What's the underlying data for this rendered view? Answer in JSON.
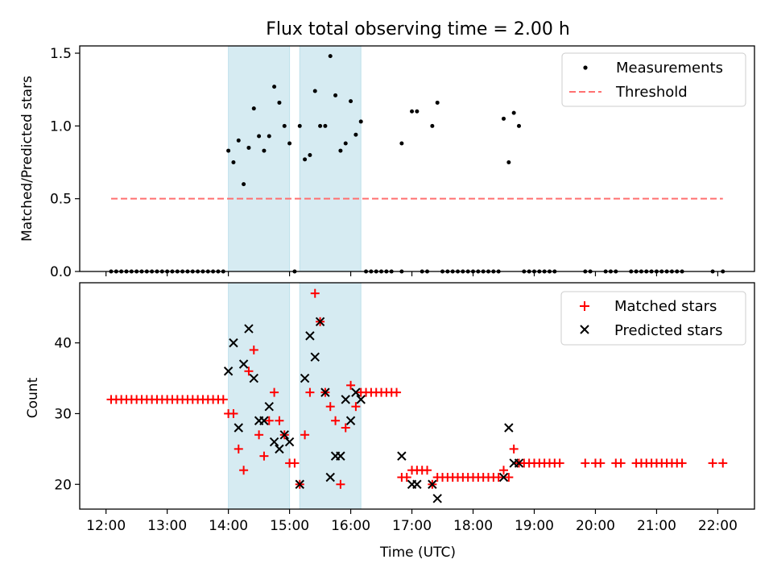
{
  "figure_title": "Flux total observing time = 2.00 h",
  "colors": {
    "measurement": "#000000",
    "threshold": "#ff7070",
    "matched": "#ff0000",
    "predicted": "#000000",
    "span_fill": "#add8e6"
  },
  "chart_data": [
    {
      "type": "scatter",
      "position": "top",
      "title": "Flux total observing time = 2.00 h",
      "xlabel": "",
      "ylabel": "Matched/Predicted stars",
      "xlim_hours": [
        11.57,
        22.6
      ],
      "ylim": [
        0,
        1.55
      ],
      "yticks": [
        0.0,
        0.5,
        1.0,
        1.5
      ],
      "ytick_labels": [
        "0.0",
        "0.5",
        "1.0",
        "1.5"
      ],
      "shaded_spans": [
        {
          "start": "14:00",
          "end": "15:00"
        },
        {
          "start": "15:10",
          "end": "16:10"
        }
      ],
      "legend": {
        "placement": "top-right",
        "entries": [
          "Measurements",
          "Threshold"
        ]
      },
      "threshold": {
        "name": "Threshold",
        "value": 0.5,
        "x_start": "12:05",
        "x_end": "22:05"
      },
      "series": [
        {
          "name": "Measurements",
          "marker": "dot",
          "points": [
            [
              "12:05",
              0
            ],
            [
              "12:10",
              0
            ],
            [
              "12:15",
              0
            ],
            [
              "12:20",
              0
            ],
            [
              "12:25",
              0
            ],
            [
              "12:30",
              0
            ],
            [
              "12:35",
              0
            ],
            [
              "12:40",
              0
            ],
            [
              "12:45",
              0
            ],
            [
              "12:50",
              0
            ],
            [
              "12:55",
              0
            ],
            [
              "13:00",
              0
            ],
            [
              "13:05",
              0
            ],
            [
              "13:10",
              0
            ],
            [
              "13:15",
              0
            ],
            [
              "13:20",
              0
            ],
            [
              "13:25",
              0
            ],
            [
              "13:30",
              0
            ],
            [
              "13:35",
              0
            ],
            [
              "13:40",
              0
            ],
            [
              "13:45",
              0
            ],
            [
              "13:50",
              0
            ],
            [
              "13:55",
              0
            ],
            [
              "14:00",
              0.83
            ],
            [
              "14:05",
              0.75
            ],
            [
              "14:10",
              0.9
            ],
            [
              "14:15",
              0.6
            ],
            [
              "14:20",
              0.85
            ],
            [
              "14:25",
              1.12
            ],
            [
              "14:30",
              0.93
            ],
            [
              "14:35",
              0.83
            ],
            [
              "14:40",
              0.93
            ],
            [
              "14:45",
              1.27
            ],
            [
              "14:50",
              1.16
            ],
            [
              "14:55",
              1.0
            ],
            [
              "15:00",
              0.88
            ],
            [
              "15:05",
              0
            ],
            [
              "15:10",
              1.0
            ],
            [
              "15:15",
              0.77
            ],
            [
              "15:20",
              0.8
            ],
            [
              "15:25",
              1.24
            ],
            [
              "15:30",
              1.0
            ],
            [
              "15:35",
              1.0
            ],
            [
              "15:40",
              1.48
            ],
            [
              "15:45",
              1.21
            ],
            [
              "15:50",
              0.83
            ],
            [
              "15:55",
              0.88
            ],
            [
              "16:00",
              1.17
            ],
            [
              "16:05",
              0.94
            ],
            [
              "16:10",
              1.03
            ],
            [
              "16:15",
              0
            ],
            [
              "16:20",
              0
            ],
            [
              "16:25",
              0
            ],
            [
              "16:30",
              0
            ],
            [
              "16:35",
              0
            ],
            [
              "16:40",
              0
            ],
            [
              "16:50",
              0
            ],
            [
              "16:50",
              0.88
            ],
            [
              "17:00",
              1.1
            ],
            [
              "17:05",
              1.1
            ],
            [
              "17:10",
              0
            ],
            [
              "17:15",
              0
            ],
            [
              "17:20",
              1.0
            ],
            [
              "17:25",
              1.16
            ],
            [
              "17:30",
              0
            ],
            [
              "17:35",
              0
            ],
            [
              "17:40",
              0
            ],
            [
              "17:45",
              0
            ],
            [
              "17:50",
              0
            ],
            [
              "17:55",
              0
            ],
            [
              "18:00",
              0
            ],
            [
              "18:05",
              0
            ],
            [
              "18:10",
              0
            ],
            [
              "18:15",
              0
            ],
            [
              "18:20",
              0
            ],
            [
              "18:25",
              0
            ],
            [
              "18:30",
              1.05
            ],
            [
              "18:35",
              0.75
            ],
            [
              "18:40",
              1.09
            ],
            [
              "18:45",
              1.0
            ],
            [
              "18:50",
              0
            ],
            [
              "18:55",
              0
            ],
            [
              "19:00",
              0
            ],
            [
              "19:05",
              0
            ],
            [
              "19:10",
              0
            ],
            [
              "19:15",
              0
            ],
            [
              "19:20",
              0
            ],
            [
              "19:50",
              0
            ],
            [
              "19:55",
              0
            ],
            [
              "20:10",
              0
            ],
            [
              "20:15",
              0
            ],
            [
              "20:20",
              0
            ],
            [
              "20:35",
              0
            ],
            [
              "20:40",
              0
            ],
            [
              "20:45",
              0
            ],
            [
              "20:50",
              0
            ],
            [
              "20:55",
              0
            ],
            [
              "21:00",
              0
            ],
            [
              "21:05",
              0
            ],
            [
              "21:10",
              0
            ],
            [
              "21:15",
              0
            ],
            [
              "21:20",
              0
            ],
            [
              "21:25",
              0
            ],
            [
              "21:55",
              0
            ],
            [
              "22:05",
              0
            ]
          ]
        }
      ]
    },
    {
      "type": "scatter",
      "position": "bottom",
      "xlabel": "Time (UTC)",
      "ylabel": "Count",
      "xlim_hours": [
        11.57,
        22.6
      ],
      "ylim": [
        16.5,
        48.5
      ],
      "yticks": [
        20,
        30,
        40
      ],
      "ytick_labels": [
        "20",
        "30",
        "40"
      ],
      "xticks": [
        "12:00",
        "13:00",
        "14:00",
        "15:00",
        "16:00",
        "17:00",
        "18:00",
        "19:00",
        "20:00",
        "21:00",
        "22:00"
      ],
      "shaded_spans": [
        {
          "start": "14:00",
          "end": "15:00"
        },
        {
          "start": "15:10",
          "end": "16:10"
        }
      ],
      "legend": {
        "placement": "top-right",
        "entries": [
          "Matched stars",
          "Predicted stars"
        ]
      },
      "series": [
        {
          "name": "Matched stars",
          "marker": "plus",
          "points": [
            [
              "12:05",
              32
            ],
            [
              "12:10",
              32
            ],
            [
              "12:15",
              32
            ],
            [
              "12:20",
              32
            ],
            [
              "12:25",
              32
            ],
            [
              "12:30",
              32
            ],
            [
              "12:35",
              32
            ],
            [
              "12:40",
              32
            ],
            [
              "12:45",
              32
            ],
            [
              "12:50",
              32
            ],
            [
              "12:55",
              32
            ],
            [
              "13:00",
              32
            ],
            [
              "13:05",
              32
            ],
            [
              "13:10",
              32
            ],
            [
              "13:15",
              32
            ],
            [
              "13:20",
              32
            ],
            [
              "13:25",
              32
            ],
            [
              "13:30",
              32
            ],
            [
              "13:35",
              32
            ],
            [
              "13:40",
              32
            ],
            [
              "13:45",
              32
            ],
            [
              "13:50",
              32
            ],
            [
              "13:55",
              32
            ],
            [
              "14:00",
              30
            ],
            [
              "14:05",
              30
            ],
            [
              "14:10",
              25
            ],
            [
              "14:15",
              22
            ],
            [
              "14:20",
              36
            ],
            [
              "14:25",
              39
            ],
            [
              "14:30",
              27
            ],
            [
              "14:35",
              24
            ],
            [
              "14:40",
              29
            ],
            [
              "14:45",
              33
            ],
            [
              "14:50",
              29
            ],
            [
              "14:55",
              27
            ],
            [
              "15:00",
              23
            ],
            [
              "15:05",
              23
            ],
            [
              "15:10",
              20
            ],
            [
              "15:15",
              27
            ],
            [
              "15:20",
              33
            ],
            [
              "15:25",
              47
            ],
            [
              "15:30",
              43
            ],
            [
              "15:35",
              33
            ],
            [
              "15:40",
              31
            ],
            [
              "15:45",
              29
            ],
            [
              "15:50",
              20
            ],
            [
              "15:55",
              28
            ],
            [
              "16:00",
              34
            ],
            [
              "16:05",
              31
            ],
            [
              "16:10",
              33
            ],
            [
              "16:15",
              33
            ],
            [
              "16:20",
              33
            ],
            [
              "16:25",
              33
            ],
            [
              "16:30",
              33
            ],
            [
              "16:35",
              33
            ],
            [
              "16:40",
              33
            ],
            [
              "16:45",
              33
            ],
            [
              "16:50",
              21
            ],
            [
              "16:55",
              21
            ],
            [
              "17:00",
              22
            ],
            [
              "17:05",
              22
            ],
            [
              "17:10",
              22
            ],
            [
              "17:15",
              22
            ],
            [
              "17:20",
              20
            ],
            [
              "17:25",
              21
            ],
            [
              "17:30",
              21
            ],
            [
              "17:35",
              21
            ],
            [
              "17:40",
              21
            ],
            [
              "17:45",
              21
            ],
            [
              "17:50",
              21
            ],
            [
              "17:55",
              21
            ],
            [
              "18:00",
              21
            ],
            [
              "18:05",
              21
            ],
            [
              "18:10",
              21
            ],
            [
              "18:15",
              21
            ],
            [
              "18:20",
              21
            ],
            [
              "18:25",
              21
            ],
            [
              "18:30",
              22
            ],
            [
              "18:35",
              21
            ],
            [
              "18:40",
              25
            ],
            [
              "18:45",
              23
            ],
            [
              "18:50",
              23
            ],
            [
              "18:55",
              23
            ],
            [
              "19:00",
              23
            ],
            [
              "19:05",
              23
            ],
            [
              "19:10",
              23
            ],
            [
              "19:15",
              23
            ],
            [
              "19:20",
              23
            ],
            [
              "19:25",
              23
            ],
            [
              "19:50",
              23
            ],
            [
              "20:00",
              23
            ],
            [
              "20:05",
              23
            ],
            [
              "20:20",
              23
            ],
            [
              "20:25",
              23
            ],
            [
              "20:40",
              23
            ],
            [
              "20:45",
              23
            ],
            [
              "20:50",
              23
            ],
            [
              "20:55",
              23
            ],
            [
              "21:00",
              23
            ],
            [
              "21:05",
              23
            ],
            [
              "21:10",
              23
            ],
            [
              "21:15",
              23
            ],
            [
              "21:20",
              23
            ],
            [
              "21:25",
              23
            ],
            [
              "21:55",
              23
            ],
            [
              "22:05",
              23
            ]
          ]
        },
        {
          "name": "Predicted stars",
          "marker": "x",
          "points": [
            [
              "14:00",
              36
            ],
            [
              "14:05",
              40
            ],
            [
              "14:10",
              28
            ],
            [
              "14:15",
              37
            ],
            [
              "14:20",
              42
            ],
            [
              "14:25",
              35
            ],
            [
              "14:30",
              29
            ],
            [
              "14:35",
              29
            ],
            [
              "14:40",
              31
            ],
            [
              "14:45",
              26
            ],
            [
              "14:50",
              25
            ],
            [
              "14:55",
              27
            ],
            [
              "15:00",
              26
            ],
            [
              "15:10",
              20
            ],
            [
              "15:15",
              35
            ],
            [
              "15:20",
              41
            ],
            [
              "15:25",
              38
            ],
            [
              "15:30",
              43
            ],
            [
              "15:35",
              33
            ],
            [
              "15:40",
              21
            ],
            [
              "15:45",
              24
            ],
            [
              "15:50",
              24
            ],
            [
              "15:55",
              32
            ],
            [
              "16:00",
              29
            ],
            [
              "16:05",
              33
            ],
            [
              "16:10",
              32
            ],
            [
              "16:50",
              24
            ],
            [
              "17:00",
              20
            ],
            [
              "17:05",
              20
            ],
            [
              "17:20",
              20
            ],
            [
              "17:25",
              18
            ],
            [
              "18:30",
              21
            ],
            [
              "18:35",
              28
            ],
            [
              "18:40",
              23
            ],
            [
              "18:45",
              23
            ]
          ]
        }
      ]
    }
  ]
}
